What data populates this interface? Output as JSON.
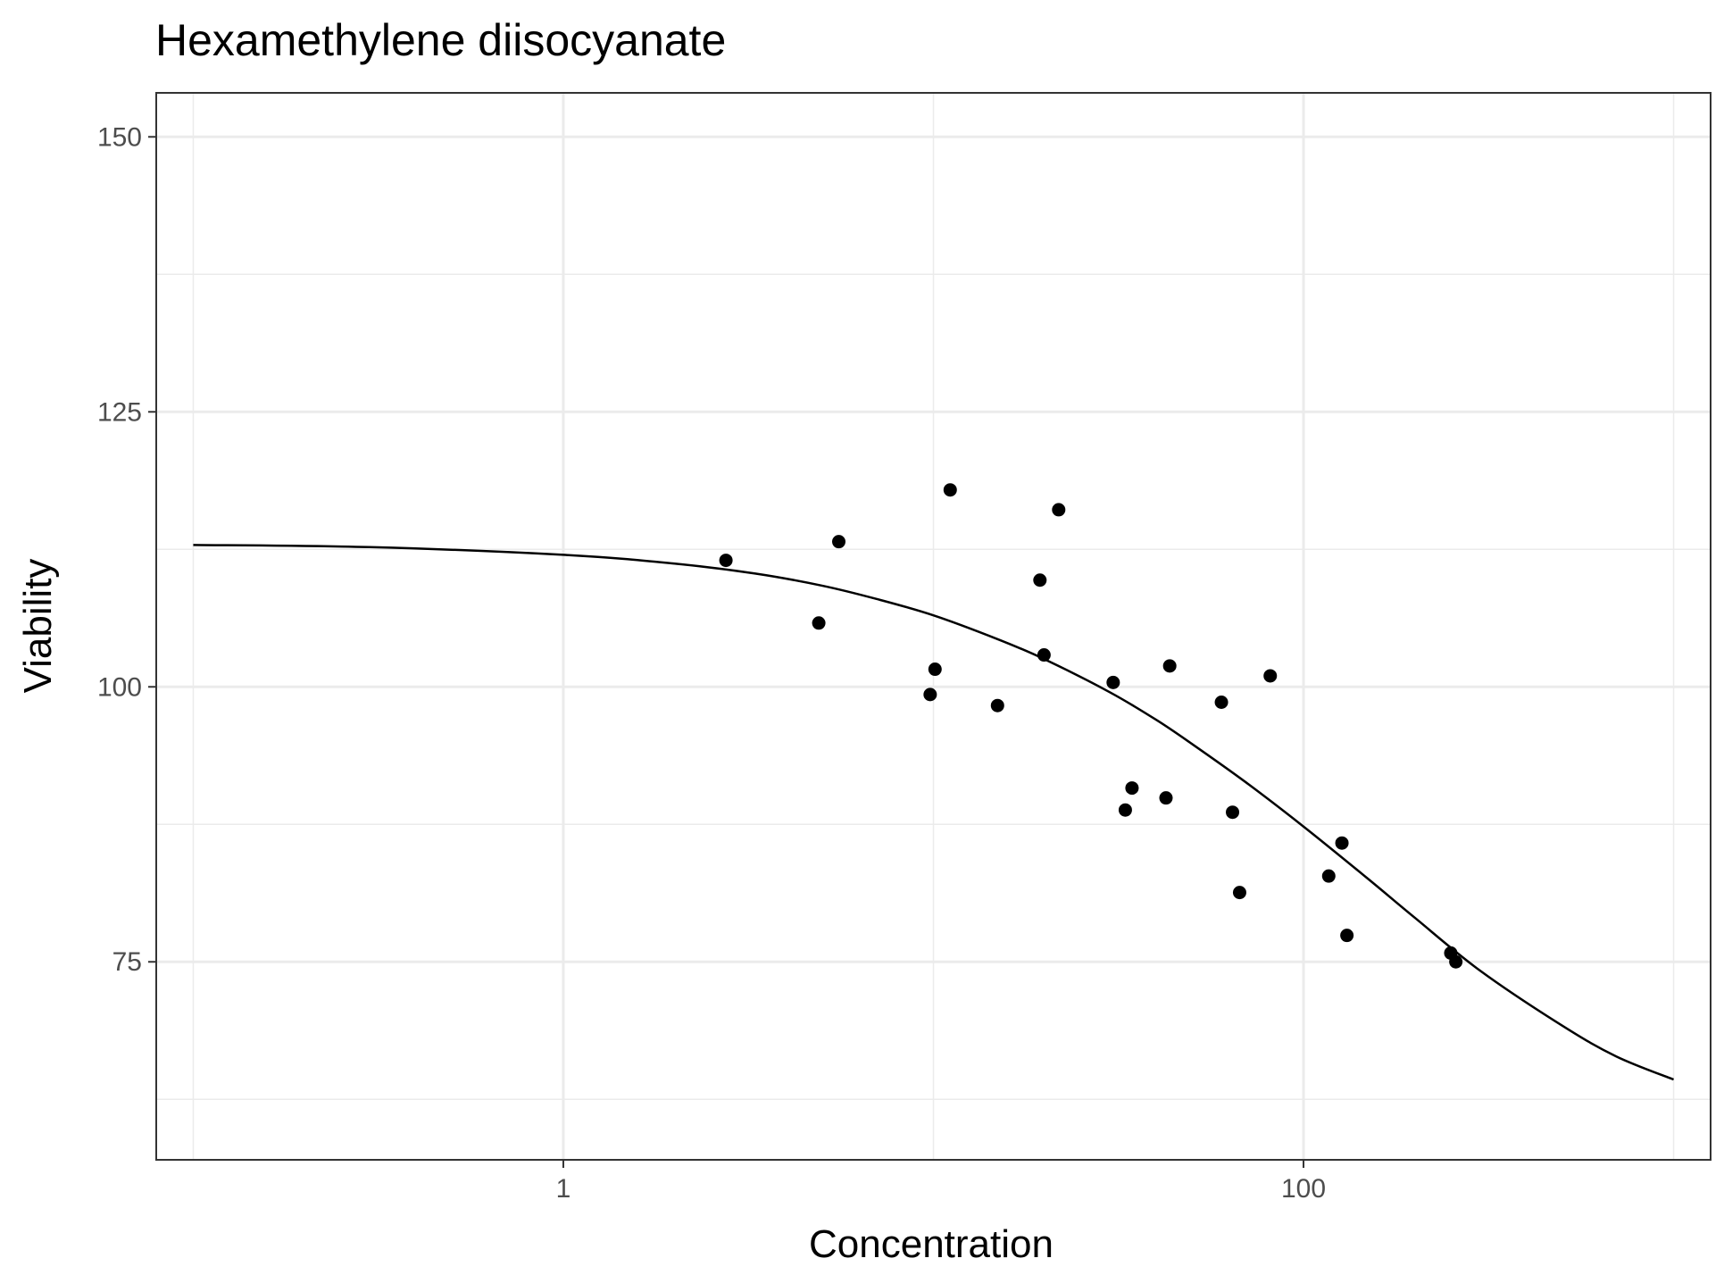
{
  "chart_data": {
    "type": "scatter",
    "title": "Hexamethylene diisocyanate",
    "xlabel": "Concentration",
    "ylabel": "Viability",
    "x_scale": "log10",
    "xlim": [
      0.1,
      1000
    ],
    "ylim": [
      57,
      154
    ],
    "x_ticks": [
      1,
      100
    ],
    "x_tick_labels": [
      "1",
      "100"
    ],
    "y_ticks": [
      75,
      100,
      125,
      150
    ],
    "y_tick_labels": [
      "75",
      "100",
      "125",
      "150"
    ],
    "grid": true,
    "legend": "none",
    "series": [
      {
        "type": "scatter",
        "color": "#000000",
        "points": [
          {
            "x": 2.75,
            "y": 111.5
          },
          {
            "x": 4.9,
            "y": 105.8
          },
          {
            "x": 5.55,
            "y": 113.2
          },
          {
            "x": 9.8,
            "y": 99.3
          },
          {
            "x": 10.1,
            "y": 101.6
          },
          {
            "x": 11.1,
            "y": 117.9
          },
          {
            "x": 14.9,
            "y": 98.3
          },
          {
            "x": 19.4,
            "y": 109.7
          },
          {
            "x": 19.9,
            "y": 102.9
          },
          {
            "x": 21.8,
            "y": 116.1
          },
          {
            "x": 30.6,
            "y": 100.4
          },
          {
            "x": 33.0,
            "y": 88.8
          },
          {
            "x": 34.4,
            "y": 90.8
          },
          {
            "x": 42.5,
            "y": 89.9
          },
          {
            "x": 43.5,
            "y": 101.9
          },
          {
            "x": 60.0,
            "y": 98.6
          },
          {
            "x": 64.3,
            "y": 88.6
          },
          {
            "x": 67.2,
            "y": 81.3
          },
          {
            "x": 81.3,
            "y": 101.0
          },
          {
            "x": 117.0,
            "y": 82.8
          },
          {
            "x": 127.0,
            "y": 85.8
          },
          {
            "x": 131.0,
            "y": 77.4
          },
          {
            "x": 250.0,
            "y": 75.8
          },
          {
            "x": 258.0,
            "y": 75.0
          }
        ]
      },
      {
        "type": "line",
        "color": "#000000",
        "x": [
          0.1,
          0.3,
          1,
          2,
          3.3,
          5,
          7,
          10,
          15,
          20,
          30,
          40,
          50,
          70,
          100,
          150,
          200,
          300,
          500,
          700,
          1000
        ],
        "y": [
          112.9,
          112.7,
          112.0,
          111.2,
          110.3,
          109.2,
          108.0,
          106.5,
          104.3,
          102.5,
          99.5,
          97.0,
          94.8,
          91.3,
          87.3,
          82.5,
          79.0,
          74.2,
          69.2,
          66.4,
          64.3
        ]
      }
    ]
  }
}
